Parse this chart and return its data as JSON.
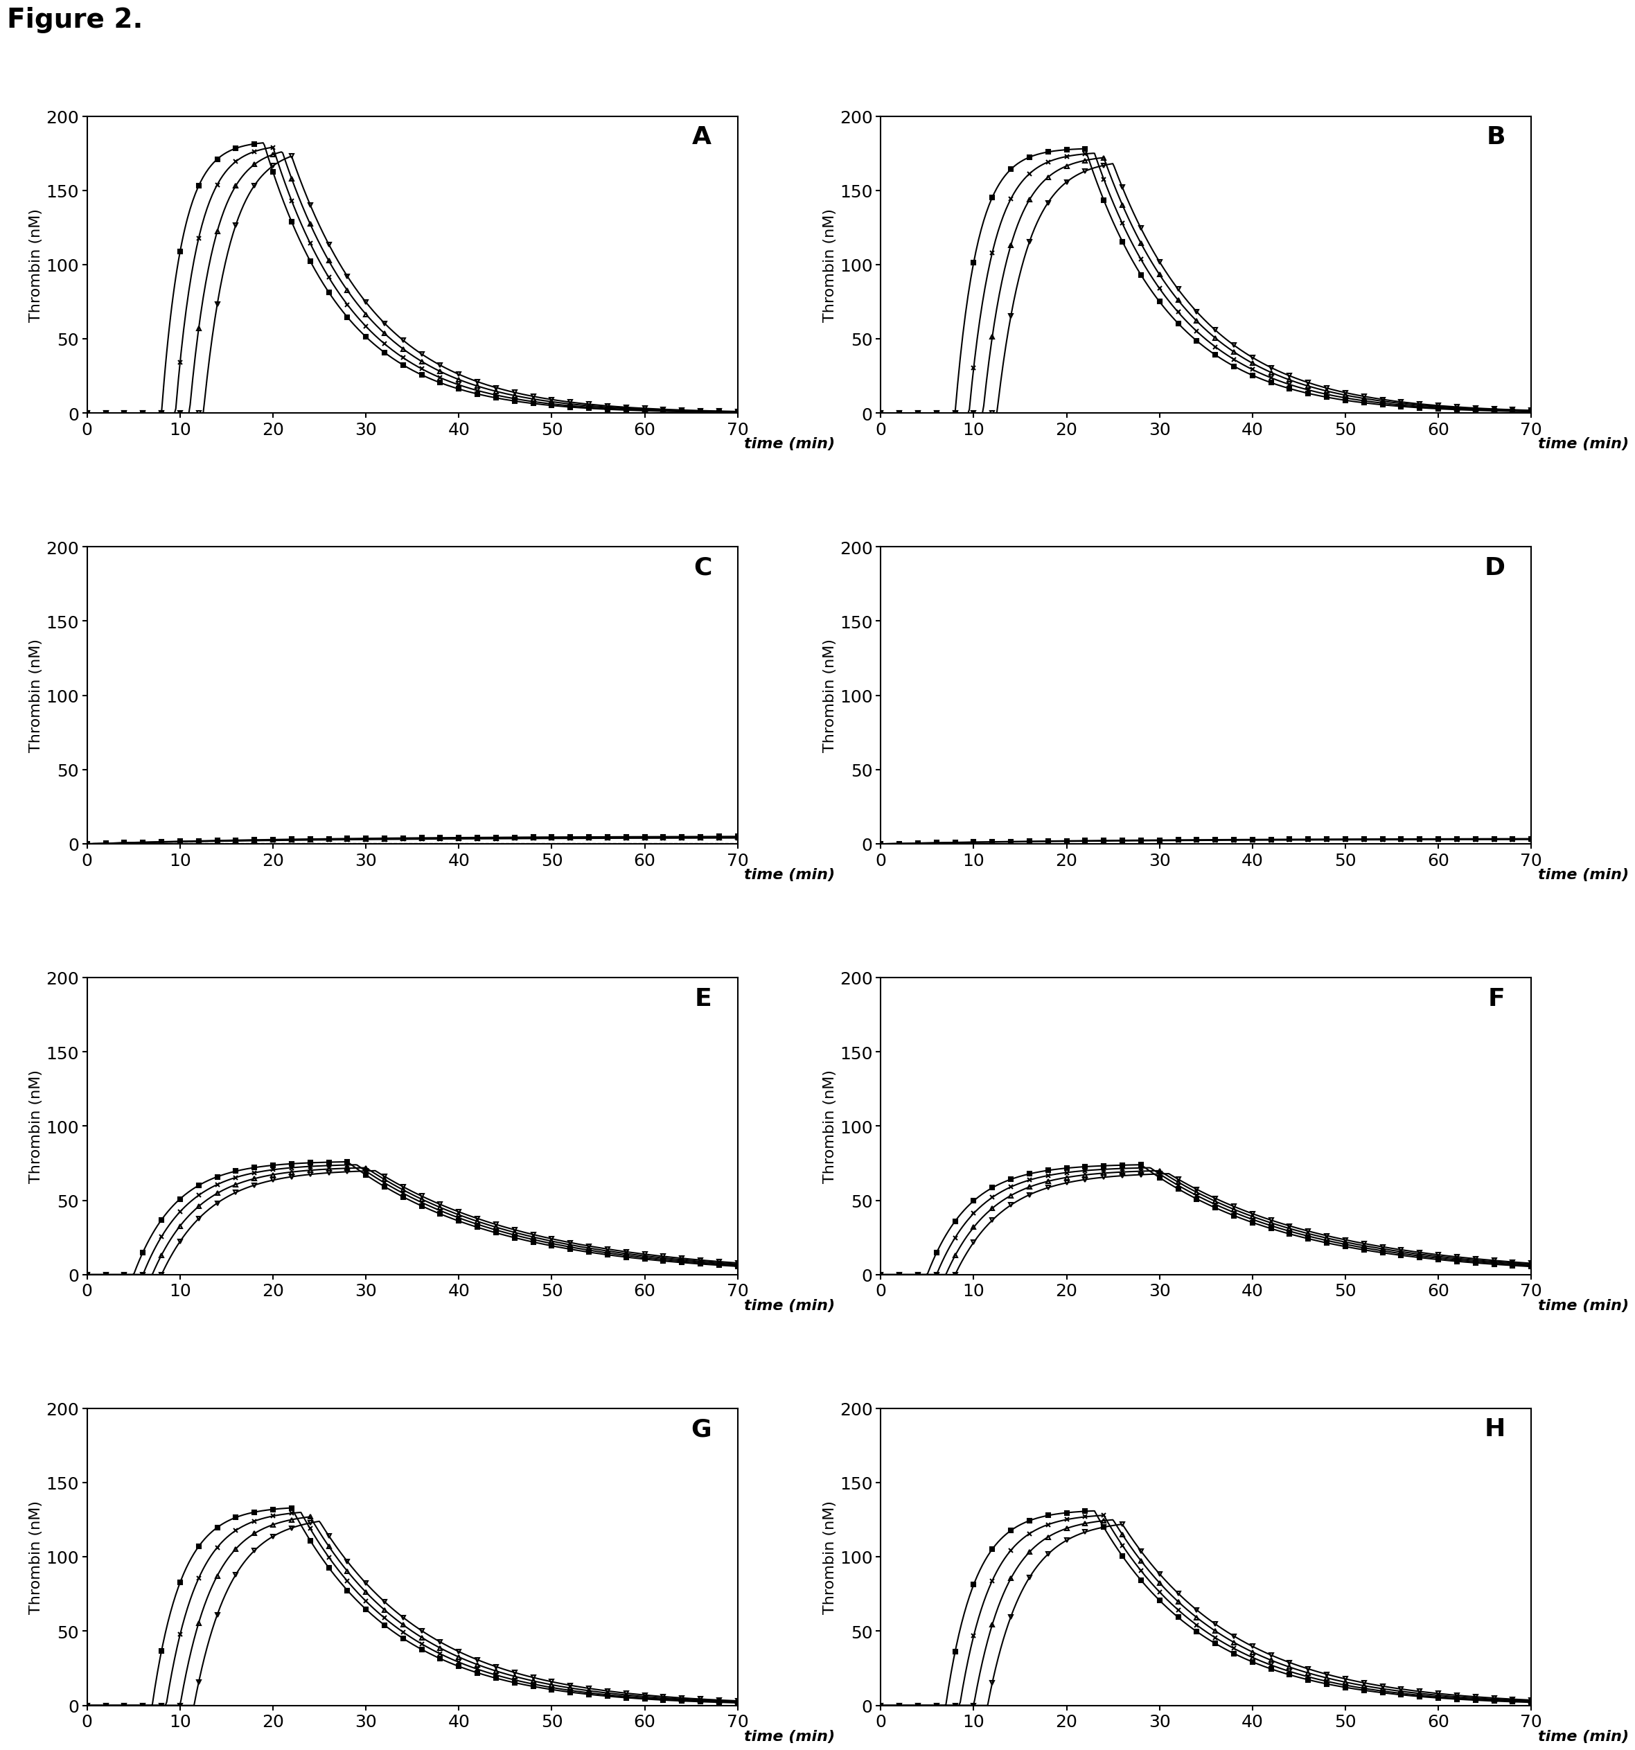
{
  "title": "Figure 2.",
  "subplot_labels": [
    "A",
    "B",
    "C",
    "D",
    "E",
    "F",
    "G",
    "H"
  ],
  "ylabel": "Thrombin (nM)",
  "xlim": [
    0,
    70
  ],
  "ylim": [
    0,
    200
  ],
  "xticks": [
    0,
    10,
    20,
    30,
    40,
    50,
    60,
    70
  ],
  "yticks": [
    0,
    50,
    100,
    150,
    200
  ],
  "background_color": "#ffffff",
  "line_color": "#000000",
  "title_fontsize": 28,
  "label_fontsize": 22,
  "tick_fontsize": 18,
  "axis_label_fontsize": 16,
  "panel_label_fontsize": 26,
  "panels": {
    "A": {
      "curves": [
        {
          "lag": 8.0,
          "peak_t": 19,
          "peak_val": 182,
          "decay": 0.115,
          "rise": 0.45,
          "marker": "s",
          "filled": true
        },
        {
          "lag": 9.5,
          "peak_t": 20,
          "peak_val": 179,
          "decay": 0.112,
          "rise": 0.42,
          "marker": "x",
          "filled": false
        },
        {
          "lag": 11.0,
          "peak_t": 21,
          "peak_val": 176,
          "decay": 0.108,
          "rise": 0.38,
          "marker": "^",
          "filled": false
        },
        {
          "lag": 12.5,
          "peak_t": 22,
          "peak_val": 173,
          "decay": 0.105,
          "rise": 0.35,
          "marker": "v",
          "filled": false
        }
      ],
      "marker_interval": 2
    },
    "B": {
      "curves": [
        {
          "lag": 8.0,
          "peak_t": 22,
          "peak_val": 178,
          "decay": 0.108,
          "rise": 0.42,
          "marker": "s",
          "filled": true
        },
        {
          "lag": 9.5,
          "peak_t": 23,
          "peak_val": 175,
          "decay": 0.105,
          "rise": 0.38,
          "marker": "x",
          "filled": false
        },
        {
          "lag": 11.0,
          "peak_t": 24,
          "peak_val": 172,
          "decay": 0.102,
          "rise": 0.35,
          "marker": "^",
          "filled": false
        },
        {
          "lag": 12.5,
          "peak_t": 25,
          "peak_val": 168,
          "decay": 0.1,
          "rise": 0.32,
          "marker": "v",
          "filled": false
        }
      ],
      "marker_interval": 2
    },
    "C": {
      "curves": [
        {
          "lag": 0,
          "peak_t": 70,
          "peak_val": 5,
          "decay": 0.005,
          "rise": 0.04,
          "marker": "s",
          "filled": true
        },
        {
          "lag": 0,
          "peak_t": 70,
          "peak_val": 4,
          "decay": 0.005,
          "rise": 0.04,
          "marker": "x",
          "filled": false
        },
        {
          "lag": 0,
          "peak_t": 70,
          "peak_val": 4.5,
          "decay": 0.005,
          "rise": 0.04,
          "marker": "^",
          "filled": false
        }
      ],
      "marker_interval": 2,
      "dashed_line": true
    },
    "D": {
      "curves": [
        {
          "lag": 0,
          "peak_t": 70,
          "peak_val": 3.5,
          "decay": 0.005,
          "rise": 0.04,
          "marker": "s",
          "filled": true
        },
        {
          "lag": 0,
          "peak_t": 70,
          "peak_val": 3,
          "decay": 0.005,
          "rise": 0.04,
          "marker": "x",
          "filled": false
        }
      ],
      "marker_interval": 2
    },
    "E": {
      "curves": [
        {
          "lag": 5.0,
          "peak_t": 28,
          "peak_val": 76,
          "decay": 0.062,
          "rise": 0.22,
          "marker": "s",
          "filled": true
        },
        {
          "lag": 6.0,
          "peak_t": 29,
          "peak_val": 74,
          "decay": 0.06,
          "rise": 0.21,
          "marker": "x",
          "filled": false
        },
        {
          "lag": 7.0,
          "peak_t": 30,
          "peak_val": 72,
          "decay": 0.058,
          "rise": 0.2,
          "marker": "^",
          "filled": false
        },
        {
          "lag": 8.0,
          "peak_t": 31,
          "peak_val": 70,
          "decay": 0.056,
          "rise": 0.19,
          "marker": "v",
          "filled": false
        }
      ],
      "marker_interval": 2
    },
    "F": {
      "curves": [
        {
          "lag": 5.0,
          "peak_t": 28,
          "peak_val": 74,
          "decay": 0.062,
          "rise": 0.22,
          "marker": "s",
          "filled": true
        },
        {
          "lag": 6.0,
          "peak_t": 29,
          "peak_val": 72,
          "decay": 0.06,
          "rise": 0.21,
          "marker": "x",
          "filled": false
        },
        {
          "lag": 7.0,
          "peak_t": 30,
          "peak_val": 70,
          "decay": 0.058,
          "rise": 0.2,
          "marker": "^",
          "filled": false
        },
        {
          "lag": 8.0,
          "peak_t": 31,
          "peak_val": 68,
          "decay": 0.056,
          "rise": 0.19,
          "marker": "v",
          "filled": false
        }
      ],
      "marker_interval": 2
    },
    "G": {
      "curves": [
        {
          "lag": 7.0,
          "peak_t": 22,
          "peak_val": 133,
          "decay": 0.09,
          "rise": 0.32,
          "marker": "s",
          "filled": true
        },
        {
          "lag": 8.5,
          "peak_t": 23,
          "peak_val": 130,
          "decay": 0.088,
          "rise": 0.3,
          "marker": "x",
          "filled": false
        },
        {
          "lag": 10.0,
          "peak_t": 24,
          "peak_val": 127,
          "decay": 0.085,
          "rise": 0.28,
          "marker": "^",
          "filled": false
        },
        {
          "lag": 11.5,
          "peak_t": 25,
          "peak_val": 124,
          "decay": 0.082,
          "rise": 0.26,
          "marker": "v",
          "filled": false
        }
      ],
      "marker_interval": 2
    },
    "H": {
      "curves": [
        {
          "lag": 7.0,
          "peak_t": 23,
          "peak_val": 131,
          "decay": 0.088,
          "rise": 0.32,
          "marker": "s",
          "filled": true
        },
        {
          "lag": 8.5,
          "peak_t": 24,
          "peak_val": 128,
          "decay": 0.086,
          "rise": 0.3,
          "marker": "x",
          "filled": false
        },
        {
          "lag": 10.0,
          "peak_t": 25,
          "peak_val": 125,
          "decay": 0.083,
          "rise": 0.28,
          "marker": "^",
          "filled": false
        },
        {
          "lag": 11.5,
          "peak_t": 26,
          "peak_val": 122,
          "decay": 0.08,
          "rise": 0.26,
          "marker": "v",
          "filled": false
        }
      ],
      "marker_interval": 2
    }
  }
}
